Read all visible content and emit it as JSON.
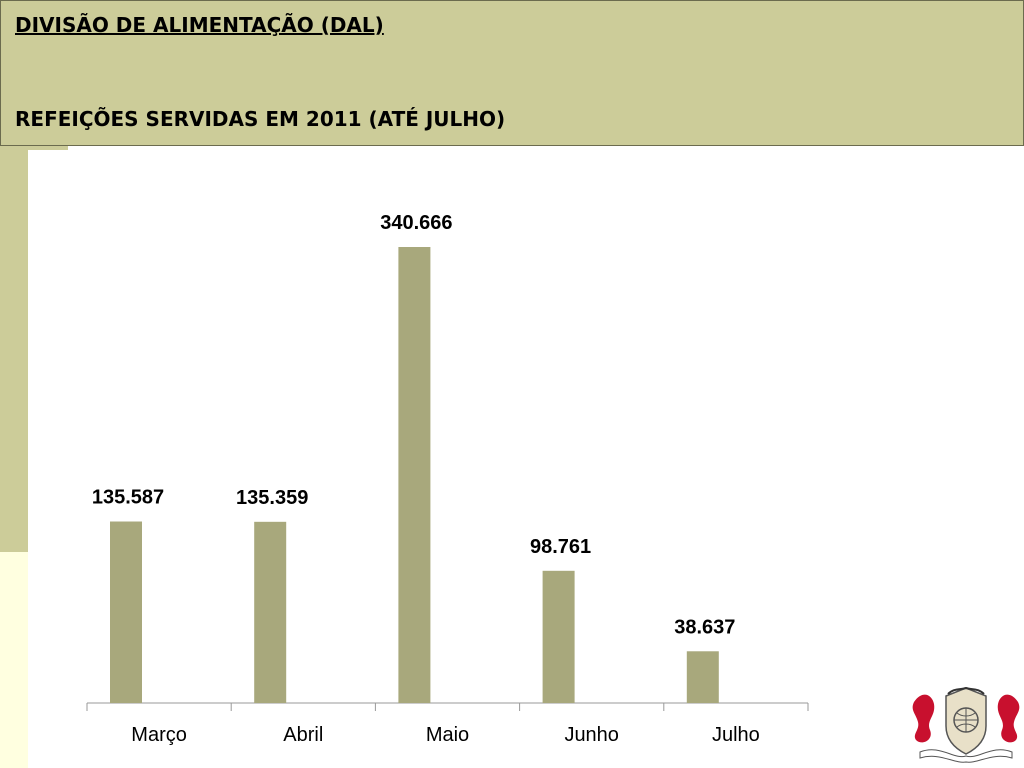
{
  "header": {
    "title": "DIVISÃO DE ALIMENTAÇÃO (DAL)",
    "subtitle": "REFEIÇÕES SERVIDAS EM 2011 (ATÉ JULHO)"
  },
  "colors": {
    "header_bg": "#cccc99",
    "bar": "#a8a87c",
    "side_band": "#ffffe0"
  },
  "chart_data": {
    "type": "bar",
    "categories": [
      "Março",
      "Abril",
      "Maio",
      "Junho",
      "Julho"
    ],
    "values": [
      135587,
      135359,
      340666,
      98761,
      38637
    ],
    "data_labels": [
      "135.587",
      "135.359",
      "340.666",
      "98.761",
      "38.637"
    ],
    "ylim": [
      0,
      400000
    ],
    "grid": false,
    "legend": "none"
  },
  "logo": {
    "name": "crest-logo"
  }
}
